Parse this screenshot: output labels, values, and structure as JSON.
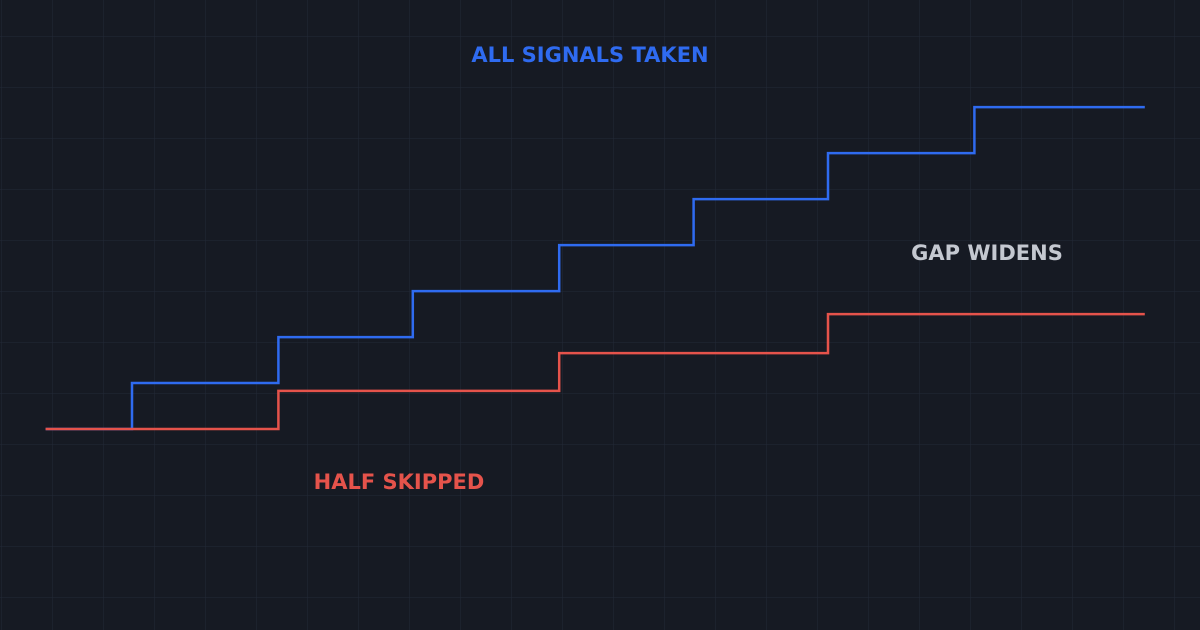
{
  "chart_data": {
    "type": "step",
    "xlim": [
      0,
      100
    ],
    "ylim": [
      -4.37,
      9.33
    ],
    "series": [
      {
        "name": "ALL SIGNALS TAKEN",
        "color": "#2f6bf0",
        "x": [
          3.8,
          11,
          23.2,
          34.4,
          46.6,
          57.8,
          69,
          81.2,
          95.4
        ],
        "values": [
          0,
          1,
          2,
          3,
          4,
          5,
          6,
          7,
          7
        ]
      },
      {
        "name": "HALF SKIPPED",
        "color": "#e5534b",
        "x": [
          3.8,
          23.2,
          46.6,
          69,
          95.4
        ],
        "values": [
          0,
          0.83,
          1.65,
          2.5,
          2.5
        ]
      }
    ],
    "annotation": "GAP WIDENS"
  }
}
